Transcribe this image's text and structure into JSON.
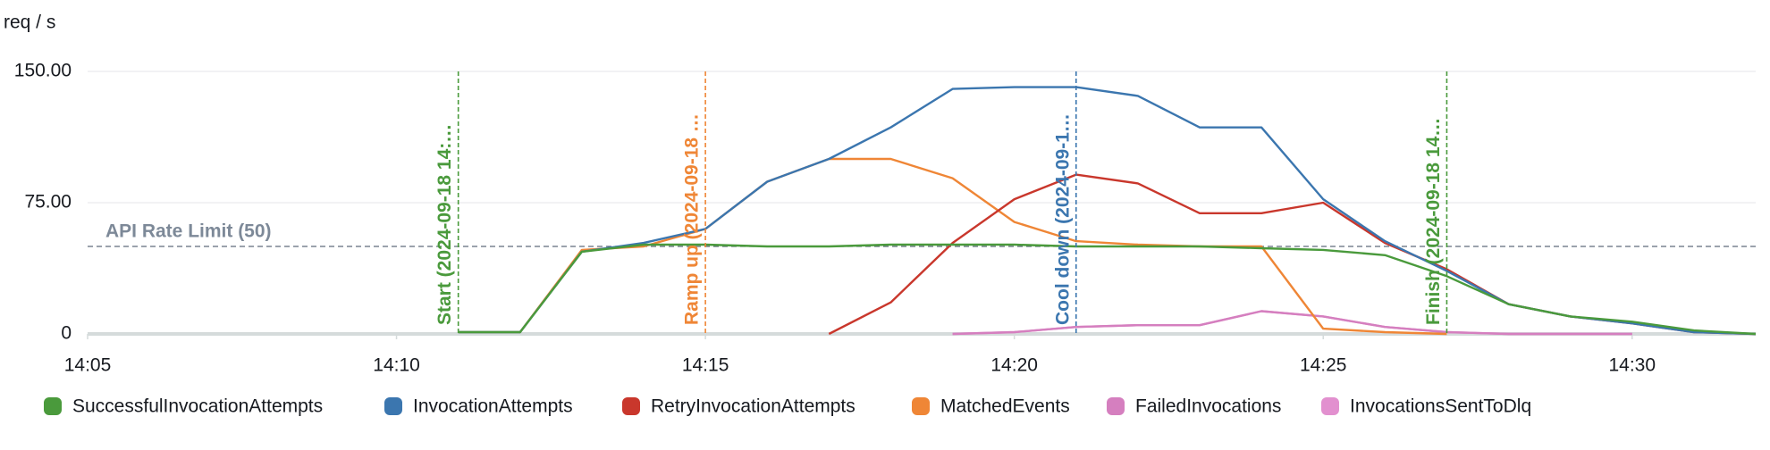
{
  "chart_data": {
    "type": "line",
    "y_label": "req / s",
    "x": [
      "14:11",
      "14:12",
      "14:13",
      "14:14",
      "14:15",
      "14:16",
      "14:17",
      "14:18",
      "14:19",
      "14:20",
      "14:21",
      "14:22",
      "14:23",
      "14:24",
      "14:25",
      "14:26",
      "14:27",
      "14:28",
      "14:29",
      "14:30",
      "14:31",
      "14:32"
    ],
    "xlim": [
      "14:05",
      "14:32"
    ],
    "xticks": [
      "14:05",
      "14:10",
      "14:15",
      "14:20",
      "14:25",
      "14:30"
    ],
    "ylim": [
      0,
      150
    ],
    "yticks": [
      0,
      {
        "value": 75,
        "label": "75.00"
      },
      {
        "value": 150,
        "label": "150.00"
      }
    ],
    "grid": true,
    "series": [
      {
        "name": "SuccessfulInvocationAttempts",
        "color": "#4a9a3c",
        "values": [
          1,
          1,
          47,
          51,
          51,
          50,
          50,
          51,
          51,
          51,
          50,
          50,
          50,
          49,
          48,
          45,
          33,
          17,
          10,
          7,
          2,
          0
        ]
      },
      {
        "name": "InvocationAttempts",
        "color": "#3b76af",
        "values": [
          1,
          1,
          47,
          52,
          60,
          87,
          100,
          118,
          140,
          141,
          141,
          136,
          118,
          118,
          77,
          53,
          36,
          17,
          10,
          6,
          1,
          0
        ]
      },
      {
        "name": "RetryInvocationAttempts",
        "color": "#c9372c",
        "values": [
          null,
          null,
          null,
          null,
          null,
          null,
          0,
          18,
          52,
          77,
          91,
          86,
          69,
          69,
          75,
          52,
          37,
          17,
          10,
          6,
          1,
          0
        ]
      },
      {
        "name": "MatchedEvents",
        "color": "#ef8636",
        "values": [
          1,
          1,
          48,
          50,
          60,
          87,
          100,
          100,
          89,
          64,
          53,
          51,
          50,
          50,
          3,
          1,
          0,
          null,
          null,
          null,
          null,
          null
        ]
      },
      {
        "name": "FailedInvocations",
        "color": "#d57fbf",
        "values": [
          null,
          null,
          null,
          null,
          null,
          null,
          null,
          null,
          0,
          1,
          4,
          5,
          5,
          13,
          10,
          4,
          1,
          0,
          0,
          0,
          null,
          null
        ]
      },
      {
        "name": "InvocationsSentToDlq",
        "color": "#e290cf",
        "values": [
          null,
          null,
          null,
          null,
          null,
          null,
          null,
          null,
          0,
          1,
          4,
          5,
          5,
          13,
          10,
          4,
          1,
          0,
          0,
          0,
          null,
          null
        ]
      }
    ],
    "hline": {
      "label": "API Rate Limit (50)",
      "value": 50
    },
    "vlines": [
      {
        "label": "Start (2024-09-18 14:…",
        "x": "14:11",
        "color": "#4a9a3c"
      },
      {
        "label": "Ramp up (2024-09-18 …",
        "x": "14:15",
        "color": "#ef8636"
      },
      {
        "label": "Cool down (2024-09-1…",
        "x": "14:21",
        "color": "#3b76af"
      },
      {
        "label": "Finish (2024-09-18 14…",
        "x": "14:27",
        "color": "#4a9a3c"
      }
    ]
  }
}
